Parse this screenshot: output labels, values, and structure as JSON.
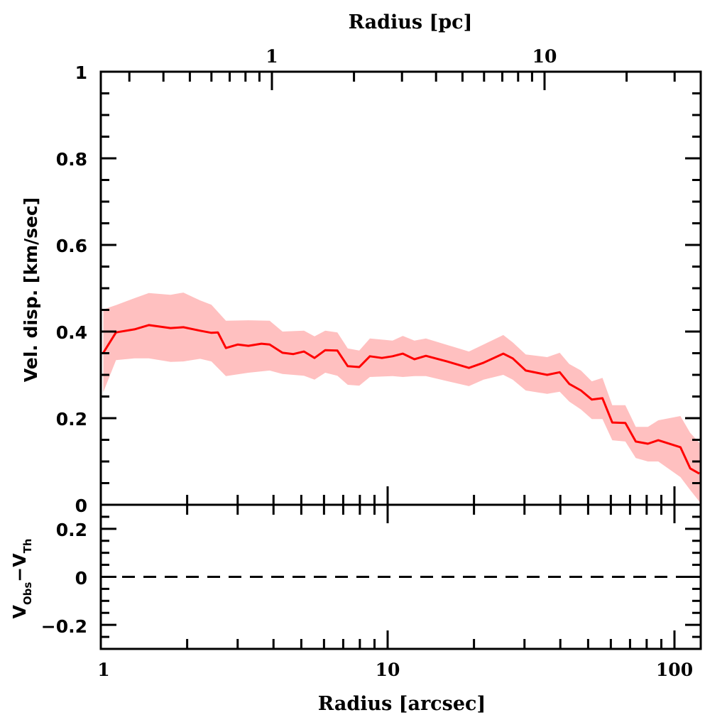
{
  "chart_data": [
    {
      "panel": "main",
      "type": "line",
      "title": "",
      "xlabel": "Radius [arcsec]",
      "ylabel": "Vel. disp. [km/sec]",
      "top_xlabel": "Radius [pc]",
      "xscale": "log",
      "xlim": [
        1,
        123
      ],
      "ylim": [
        0,
        1
      ],
      "top_xlim_pc": [
        0.31,
        38
      ],
      "yticks": [
        "0",
        "0.2",
        "0.4",
        "0.6",
        "0.8",
        "1"
      ],
      "ytick_values": [
        0,
        0.2,
        0.4,
        0.6,
        0.8,
        1
      ],
      "top_xticks": [
        "1",
        "10"
      ],
      "top_xtick_values_pc": [
        1,
        10
      ],
      "grid": false,
      "colors": {
        "line": "#ff0000",
        "band": "#ffc0c0",
        "axes": "#000000"
      },
      "series": [
        {
          "name": "velocity dispersion",
          "x": [
            1.02,
            1.13,
            1.31,
            1.47,
            1.75,
            1.94,
            2.22,
            2.43,
            2.56,
            2.73,
            3.0,
            3.27,
            3.63,
            3.88,
            4.3,
            4.69,
            5.11,
            5.56,
            6.06,
            6.68,
            7.26,
            7.96,
            8.67,
            9.55,
            10.4,
            11.3,
            12.4,
            13.6,
            16.1,
            19.2,
            21.6,
            25.3,
            27.3,
            30.3,
            36.0,
            39.8,
            43.0,
            47.2,
            51.5,
            56.1,
            60.7,
            67.4,
            73.3,
            80.8,
            87.8,
            104.9,
            113.5,
            122.1
          ],
          "y": [
            0.351,
            0.398,
            0.405,
            0.415,
            0.408,
            0.41,
            0.402,
            0.397,
            0.398,
            0.362,
            0.37,
            0.367,
            0.372,
            0.37,
            0.351,
            0.348,
            0.354,
            0.339,
            0.357,
            0.356,
            0.32,
            0.318,
            0.343,
            0.339,
            0.343,
            0.349,
            0.336,
            0.344,
            0.331,
            0.316,
            0.328,
            0.349,
            0.338,
            0.31,
            0.3,
            0.306,
            0.279,
            0.264,
            0.243,
            0.246,
            0.19,
            0.189,
            0.146,
            0.141,
            0.149,
            0.133,
            0.084,
            0.072
          ]
        }
      ],
      "band": {
        "name": "uncertainty range",
        "x": [
          1.02,
          1.13,
          1.31,
          1.47,
          1.75,
          1.94,
          2.22,
          2.43,
          2.73,
          3.27,
          3.88,
          4.3,
          5.11,
          5.56,
          6.06,
          6.68,
          7.26,
          7.96,
          8.67,
          10.4,
          11.3,
          12.4,
          13.6,
          19.2,
          21.6,
          25.3,
          27.3,
          30.3,
          36.0,
          39.8,
          43.0,
          47.2,
          51.5,
          56.1,
          60.7,
          67.4,
          73.3,
          80.8,
          87.8,
          104.9,
          113.5,
          123
        ],
        "upper": [
          0.451,
          0.461,
          0.477,
          0.489,
          0.485,
          0.49,
          0.472,
          0.462,
          0.425,
          0.426,
          0.425,
          0.4,
          0.402,
          0.389,
          0.402,
          0.398,
          0.361,
          0.356,
          0.384,
          0.379,
          0.39,
          0.379,
          0.384,
          0.354,
          0.37,
          0.392,
          0.375,
          0.347,
          0.341,
          0.351,
          0.325,
          0.31,
          0.285,
          0.293,
          0.23,
          0.23,
          0.18,
          0.18,
          0.195,
          0.205,
          0.166,
          0.141
        ],
        "lower": [
          0.26,
          0.334,
          0.338,
          0.338,
          0.33,
          0.331,
          0.337,
          0.331,
          0.297,
          0.305,
          0.31,
          0.302,
          0.298,
          0.289,
          0.305,
          0.298,
          0.277,
          0.275,
          0.295,
          0.297,
          0.295,
          0.297,
          0.297,
          0.274,
          0.289,
          0.3,
          0.289,
          0.264,
          0.256,
          0.261,
          0.238,
          0.22,
          0.198,
          0.198,
          0.149,
          0.146,
          0.108,
          0.1,
          0.1,
          0.064,
          0.034,
          0.005
        ]
      }
    },
    {
      "panel": "residual",
      "type": "line",
      "xlabel": "Radius [arcsec]",
      "ylabel_main": "V",
      "ylabel_sub1": "Obs",
      "ylabel_mid": "−V",
      "ylabel_sub2": "Th",
      "xscale": "log",
      "xlim": [
        1,
        123
      ],
      "ylim": [
        -0.3,
        0.3
      ],
      "yticks": [
        "0.2",
        "0",
        "−0.2"
      ],
      "ytick_values": [
        0.2,
        0,
        -0.2
      ],
      "xticks": [
        "1",
        "10",
        "100"
      ],
      "xtick_values": [
        1,
        10,
        100
      ],
      "reference_line": {
        "y": 0,
        "style": "dashed"
      },
      "series": []
    }
  ]
}
